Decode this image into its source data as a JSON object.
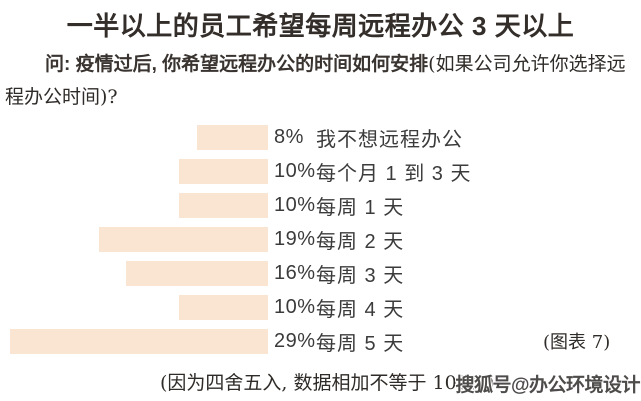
{
  "title": "一半以上的员工希望每周远程办公 3 天以上",
  "question": {
    "bold": "问: 疫情过后, 你希望远程办公的时间如何安排",
    "paren_line1": "(如果公司允许你选择远",
    "paren_line2": "程办公时间)?"
  },
  "chart_data": {
    "type": "bar",
    "orientation": "horizontal",
    "categories": [
      "我不想远程办公",
      "每个月 1 到 3 天",
      "每周 1 天",
      "每周 2 天",
      "每周 3 天",
      "每周 4 天",
      "每周 5 天"
    ],
    "values": [
      8,
      10,
      10,
      19,
      16,
      10,
      29
    ],
    "value_labels": [
      "8%",
      "10%",
      "10%",
      "19%",
      "16%",
      "10%",
      "29%"
    ],
    "unit": "percent",
    "bars_right_aligned": true,
    "bar_color": "#fae4d2",
    "note": "(图表 7)"
  },
  "footer": {
    "note": "(因为四舍五入, 数据相加不等于 100%)",
    "watermark": "搜狐号@办公环境设计"
  },
  "colors": {
    "background": "#ffffff",
    "text": "#3a3431",
    "bar": "#fae4d2",
    "watermark_text": "#4e4c4a"
  }
}
